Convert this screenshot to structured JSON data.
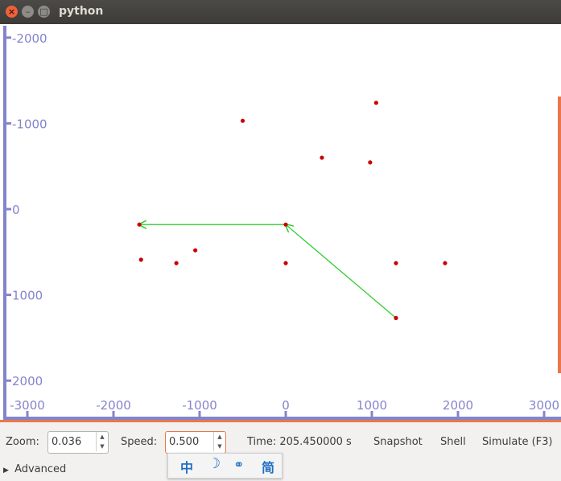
{
  "window": {
    "title": "python"
  },
  "plot": {
    "x_ticks": [
      "-3000",
      "-2000",
      "-1000",
      "0",
      "1000",
      "2000",
      "3000"
    ],
    "y_ticks": [
      "-2000",
      "-1000",
      "0",
      "1000",
      "2000"
    ],
    "points": [
      [
        1050,
        -1240
      ],
      [
        -500,
        -1030
      ],
      [
        420,
        -600
      ],
      [
        980,
        -545
      ],
      [
        -1700,
        180
      ],
      [
        0,
        180
      ],
      [
        -1680,
        590
      ],
      [
        -1270,
        630
      ],
      [
        -1050,
        480
      ],
      [
        0,
        630
      ],
      [
        1280,
        630
      ],
      [
        1850,
        630
      ],
      [
        1280,
        1270
      ]
    ],
    "path": [
      [
        1280,
        1270
      ],
      [
        0,
        180
      ],
      [
        -1700,
        180
      ]
    ],
    "colors": {
      "point": "#cc0000",
      "path": "#33cc33",
      "axis": "#8484cc",
      "accent": "#e9774b"
    }
  },
  "controls": {
    "zoom_label": "Zoom:",
    "zoom_value": "0.036",
    "speed_label": "Speed:",
    "speed_value": "0.500",
    "time_text": "Time: 205.450000 s",
    "snapshot_label": "Snapshot",
    "shell_label": "Shell",
    "simulate_label": "Simulate (F3)",
    "advanced_label": "Advanced"
  },
  "ime": {
    "items": [
      "中",
      "☽",
      "⚭",
      "简"
    ]
  }
}
